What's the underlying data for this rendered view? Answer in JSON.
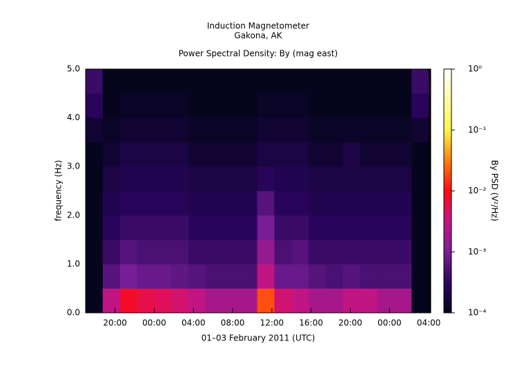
{
  "chart_data": {
    "type": "heatmap",
    "title": "Induction Magnetometer",
    "subtitle": "Gakona, AK",
    "plot_title": "Power Spectral Density: By (mag east)",
    "x_label": "01–03 February 2011 (UTC)",
    "y_label": "frequency (Hz)",
    "z_label": "By PSD (V²/Hz)",
    "xlim": [
      17,
      52.2
    ],
    "xticks": [
      {
        "value": 20,
        "label": "20:00"
      },
      {
        "value": 24,
        "label": "00:00"
      },
      {
        "value": 28,
        "label": "04:00"
      },
      {
        "value": 32,
        "label": "08:00"
      },
      {
        "value": 36,
        "label": "12:00"
      },
      {
        "value": 40,
        "label": "16:00"
      },
      {
        "value": 44,
        "label": "20:00"
      },
      {
        "value": 48,
        "label": "00:00"
      },
      {
        "value": 52,
        "label": "04:00"
      }
    ],
    "ylim": [
      0,
      5
    ],
    "yticks": [
      {
        "value": 0,
        "label": "0.0"
      },
      {
        "value": 1,
        "label": "1.0"
      },
      {
        "value": 2,
        "label": "2.0"
      },
      {
        "value": 3,
        "label": "3.0"
      },
      {
        "value": 4,
        "label": "4.0"
      },
      {
        "value": 5,
        "label": "5.0"
      }
    ],
    "zlim": [
      0.0001,
      1
    ],
    "zlog": true,
    "zticks": [
      {
        "value": 0.0001,
        "label": "10⁻⁴"
      },
      {
        "value": 0.001,
        "label": "10⁻³"
      },
      {
        "value": 0.01,
        "label": "10⁻²"
      },
      {
        "value": 0.1,
        "label": "10⁻¹"
      },
      {
        "value": 1,
        "label": "10⁰"
      }
    ],
    "x_edges": [
      17,
      18.75,
      20.5,
      22.25,
      24,
      25.75,
      27.5,
      29.25,
      31,
      32.75,
      34.5,
      36.25,
      38,
      39.75,
      41.5,
      43.25,
      45,
      46.75,
      48.5,
      50.25,
      52
    ],
    "y_edges": [
      0,
      0.5,
      1,
      1.5,
      2,
      2.5,
      3,
      3.5,
      4,
      4.5,
      5
    ],
    "values": [
      [
        0.0001,
        0.003,
        0.008,
        0.006,
        0.005,
        0.004,
        0.003,
        0.002,
        0.002,
        0.002,
        0.02,
        0.004,
        0.003,
        0.002,
        0.002,
        0.003,
        0.003,
        0.002,
        0.002,
        0.0001
      ],
      [
        0.0001,
        0.0006,
        0.001,
        0.0008,
        0.0008,
        0.0007,
        0.0006,
        0.0005,
        0.0005,
        0.0005,
        0.003,
        0.0008,
        0.0008,
        0.0006,
        0.0005,
        0.0006,
        0.0005,
        0.0005,
        0.0005,
        0.0001
      ],
      [
        0.0001,
        0.0004,
        0.0006,
        0.0005,
        0.0005,
        0.0005,
        0.0004,
        0.0004,
        0.0004,
        0.0004,
        0.0015,
        0.0005,
        0.0006,
        0.0004,
        0.0004,
        0.0004,
        0.0004,
        0.0004,
        0.0004,
        0.0001
      ],
      [
        0.0001,
        0.0003,
        0.0004,
        0.0004,
        0.0004,
        0.0004,
        0.0003,
        0.0003,
        0.0003,
        0.0003,
        0.001,
        0.0004,
        0.0004,
        0.0003,
        0.0003,
        0.0003,
        0.0003,
        0.0003,
        0.0003,
        0.0001
      ],
      [
        0.0001,
        0.00025,
        0.0003,
        0.0003,
        0.0003,
        0.0003,
        0.00025,
        0.00025,
        0.00025,
        0.00025,
        0.0006,
        0.0003,
        0.0003,
        0.00025,
        0.00025,
        0.00025,
        0.00025,
        0.00025,
        0.00025,
        0.0001
      ],
      [
        0.0001,
        0.0002,
        0.00025,
        0.00025,
        0.00025,
        0.00025,
        0.0002,
        0.0002,
        0.0002,
        0.0002,
        0.0003,
        0.00025,
        0.00025,
        0.0002,
        0.0002,
        0.0002,
        0.0002,
        0.0002,
        0.0002,
        0.0001
      ],
      [
        0.0001,
        0.00015,
        0.0002,
        0.0002,
        0.0002,
        0.0002,
        0.00015,
        0.00015,
        0.00015,
        0.00015,
        0.0002,
        0.0002,
        0.0002,
        0.00015,
        0.00015,
        0.0002,
        0.00015,
        0.00015,
        0.00015,
        0.0001
      ],
      [
        0.00015,
        0.00012,
        0.00015,
        0.00015,
        0.00015,
        0.00015,
        0.00012,
        0.00012,
        0.00012,
        0.00012,
        0.00015,
        0.00015,
        0.00015,
        0.00012,
        0.00012,
        0.00012,
        0.00012,
        0.00012,
        0.00012,
        0.00015
      ],
      [
        0.0003,
        0.0001,
        0.00012,
        0.00012,
        0.00012,
        0.00012,
        0.0001,
        0.0001,
        0.0001,
        0.0001,
        0.00012,
        0.00012,
        0.00012,
        0.0001,
        0.0001,
        0.0001,
        0.0001,
        0.0001,
        0.0001,
        0.0003
      ],
      [
        0.0004,
        0.0001,
        0.0001,
        0.0001,
        0.0001,
        0.0001,
        0.0001,
        0.0001,
        0.0001,
        0.0001,
        0.0001,
        0.0001,
        0.0001,
        0.0001,
        0.0001,
        0.0001,
        0.0001,
        0.0001,
        0.0001,
        0.0004
      ]
    ]
  }
}
